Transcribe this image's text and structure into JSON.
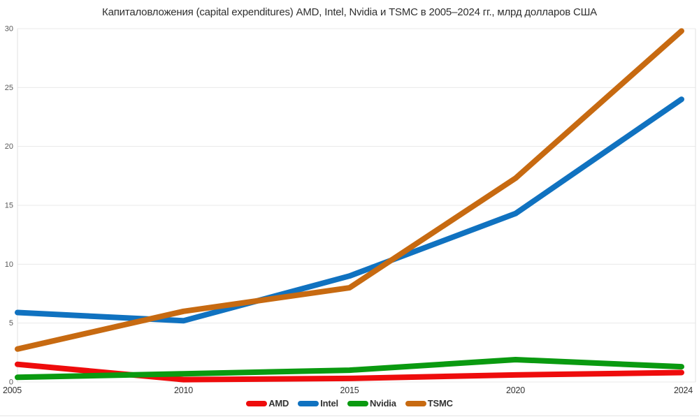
{
  "title": "Капиталовложения (capital expenditures) AMD, Intel, Nvidia и TSMC в 2005–2024 гг., млрд долларов США",
  "chart_data": {
    "type": "line",
    "categories": [
      "2005",
      "2010",
      "2015",
      "2020",
      "2024"
    ],
    "series": [
      {
        "name": "AMD",
        "color": "#ee0c0c",
        "values": [
          1.5,
          0.2,
          0.3,
          0.6,
          0.8
        ]
      },
      {
        "name": "Intel",
        "color": "#1072c0",
        "values": [
          5.9,
          5.2,
          9.0,
          14.3,
          24.0
        ]
      },
      {
        "name": "Nvidia",
        "color": "#0a9a10",
        "values": [
          0.4,
          0.7,
          1.0,
          1.9,
          1.3
        ]
      },
      {
        "name": "TSMC",
        "color": "#c76a11",
        "values": [
          2.8,
          6.0,
          8.0,
          17.3,
          29.8
        ]
      }
    ],
    "title": "Капиталовложения (capital expenditures) AMD, Intel, Nvidia и TSMC в 2005–2024 гг., млрд долларов США",
    "xlabel": "",
    "ylabel": "",
    "ylim": [
      0,
      30
    ],
    "yticks": [
      0,
      5,
      10,
      15,
      20,
      25,
      30
    ],
    "grid": true,
    "legend_position": "bottom"
  },
  "colors": {
    "grid": "#e8e8e8",
    "plot_border": "#e0e0e0",
    "y_tick_label": "#595959",
    "x_tick_label": "#333333",
    "title": "#2f2f2f",
    "background": "#ffffff"
  }
}
